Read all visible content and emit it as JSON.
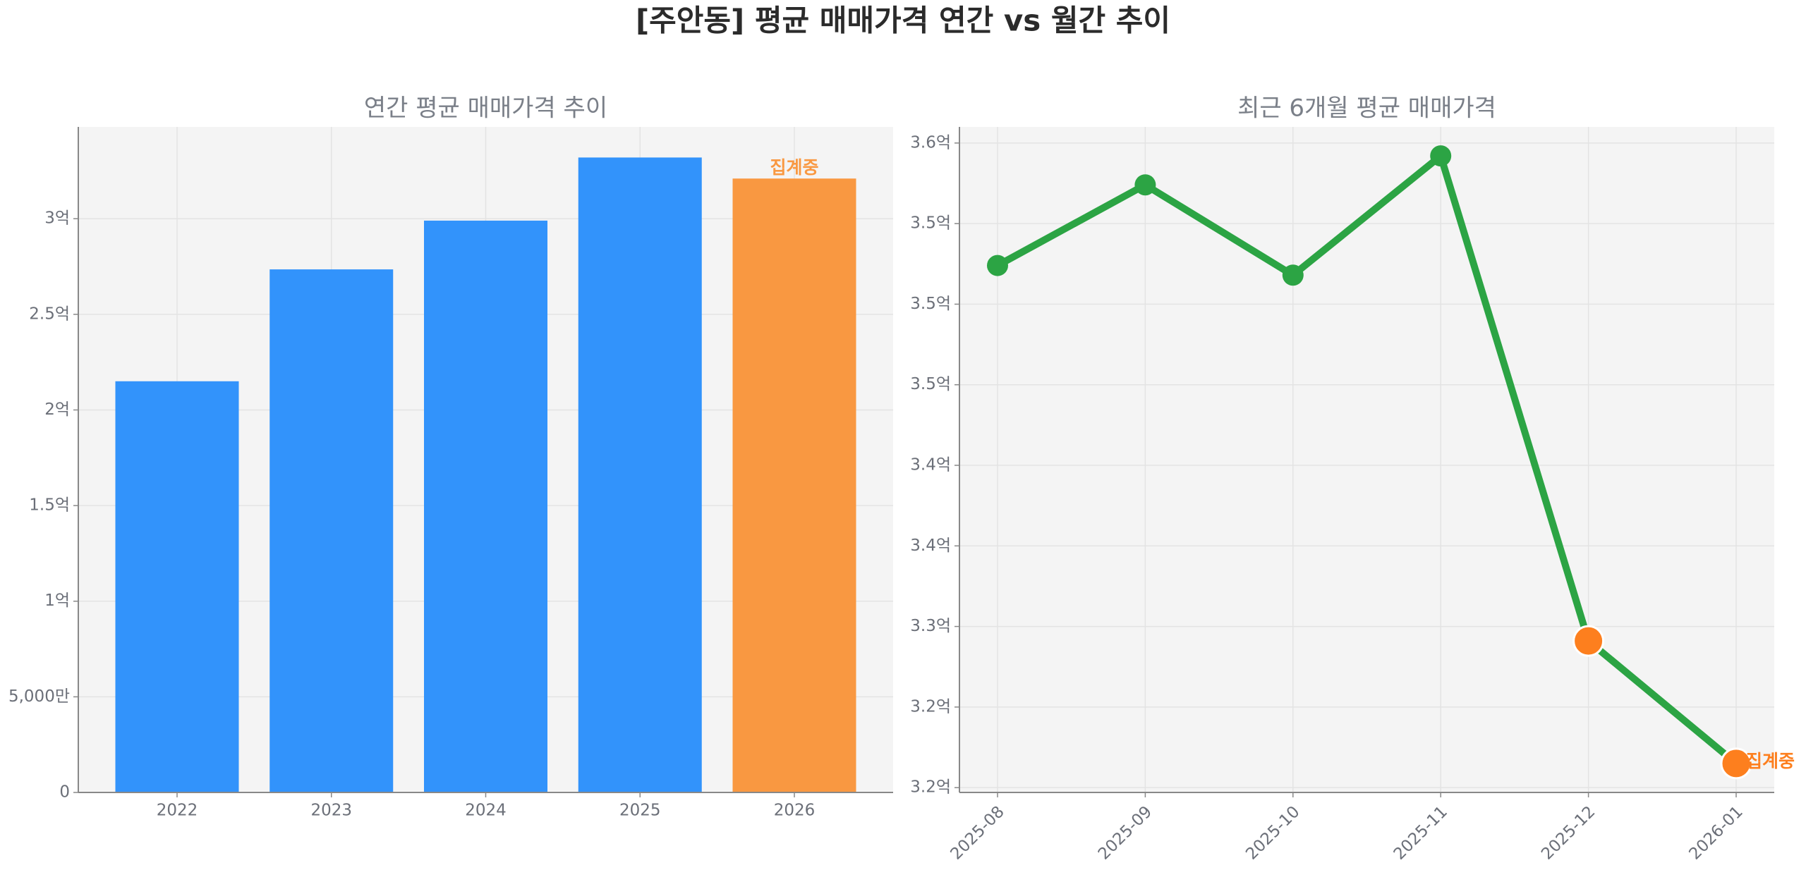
{
  "title": "[주안동] 평균 매매가격 연간 vs 월간 추이",
  "chart_data": [
    {
      "type": "bar",
      "title": "연간 평균 매매가격 추이",
      "categories": [
        "2022",
        "2023",
        "2024",
        "2025",
        "2026"
      ],
      "values": [
        215000000,
        273500000,
        299000000,
        332000000,
        321000000
      ],
      "colors": [
        "#3293fb",
        "#3293fb",
        "#3293fb",
        "#3293fb",
        "#f99841"
      ],
      "annotation": "집계중",
      "ylim": [
        0,
        348000000
      ],
      "yticks": [
        0,
        {
          "value": 50000000,
          "label": "5,000만"
        },
        {
          "value": 100000000,
          "label": "1억"
        },
        {
          "value": 150000000,
          "label": "1.5억"
        },
        {
          "value": 200000000,
          "label": "2억"
        },
        {
          "value": 250000000,
          "label": "2.5억"
        },
        {
          "value": 300000000,
          "label": "3억"
        }
      ],
      "grid": true
    },
    {
      "type": "line",
      "title": "최근 6개월 평균 매매가격",
      "categories": [
        "2025-08",
        "2025-09",
        "2025-10",
        "2025-11",
        "2025-12",
        "2026-01"
      ],
      "values": [
        352400000,
        357400000,
        351800000,
        359200000,
        329100000,
        321500000
      ],
      "color": "#2ca444",
      "marker_colors": [
        "#2ca444",
        "#2ca444",
        "#2ca444",
        "#2ca444",
        "#fd7f1e",
        "#fd7f1e"
      ],
      "annotation": "집계중",
      "ylim": [
        319700000,
        361000000
      ],
      "yticks": [
        {
          "value": 320000000,
          "label": "3.2억"
        },
        {
          "value": 325000000,
          "label": "3.2억"
        },
        {
          "value": 330000000,
          "label": "3.3억"
        },
        {
          "value": 335000000,
          "label": "3.4억"
        },
        {
          "value": 340000000,
          "label": "3.4억"
        },
        {
          "value": 345000000,
          "label": "3.5억"
        },
        {
          "value": 350000000,
          "label": "3.5억"
        },
        {
          "value": 355000000,
          "label": "3.5억"
        },
        {
          "value": 360000000,
          "label": "3.6억"
        }
      ],
      "grid": true
    }
  ]
}
